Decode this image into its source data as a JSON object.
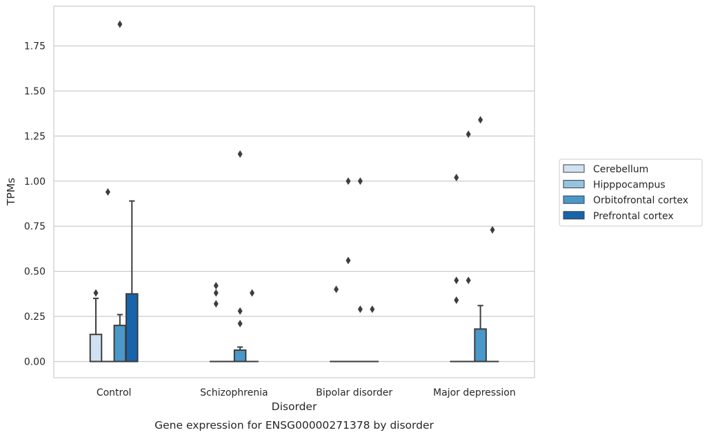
{
  "chart_data": {
    "type": "box",
    "title": "",
    "caption": "Gene expression for ENSG00000271378 by disorder",
    "xlabel": "Disorder",
    "ylabel": "TPMs",
    "ylim": [
      -0.09,
      1.97
    ],
    "yticks": [
      0.0,
      0.25,
      0.5,
      0.75,
      1.0,
      1.25,
      1.5,
      1.75
    ],
    "ytick_labels": [
      "0.00",
      "0.25",
      "0.50",
      "0.75",
      "1.00",
      "1.25",
      "1.50",
      "1.75"
    ],
    "grid": "horizontal",
    "legend_position": "right",
    "categories": [
      "Control",
      "Schizophrenia",
      "Bipolar disorder",
      "Major depression"
    ],
    "series": [
      {
        "name": "Cerebellum",
        "color": "#d0e1f2",
        "boxes": [
          {
            "q1": 0.0,
            "median": 0.0,
            "q3": 0.15,
            "whisker_low": 0.0,
            "whisker_high": 0.35,
            "outliers": [
              0.38
            ]
          },
          {
            "q1": 0.0,
            "median": 0.0,
            "q3": 0.0,
            "whisker_low": 0.0,
            "whisker_high": 0.0,
            "outliers": [
              0.42,
              0.38,
              0.32
            ]
          },
          {
            "q1": 0.0,
            "median": 0.0,
            "q3": 0.0,
            "whisker_low": 0.0,
            "whisker_high": 0.0,
            "outliers": [
              0.4
            ]
          },
          {
            "q1": 0.0,
            "median": 0.0,
            "q3": 0.0,
            "whisker_low": 0.0,
            "whisker_high": 0.0,
            "outliers": [
              1.02,
              0.45,
              0.34
            ]
          }
        ]
      },
      {
        "name": "Hipppocampus",
        "color": "#94c4df",
        "boxes": [
          {
            "q1": 0.0,
            "median": 0.0,
            "q3": 0.0,
            "whisker_low": 0.0,
            "whisker_high": 0.0,
            "outliers": [
              0.94
            ]
          },
          {
            "q1": 0.0,
            "median": 0.0,
            "q3": 0.0,
            "whisker_low": 0.0,
            "whisker_high": 0.0,
            "outliers": []
          },
          {
            "q1": 0.0,
            "median": 0.0,
            "q3": 0.0,
            "whisker_low": 0.0,
            "whisker_high": 0.0,
            "outliers": [
              1.0,
              0.56
            ]
          },
          {
            "q1": 0.0,
            "median": 0.0,
            "q3": 0.0,
            "whisker_low": 0.0,
            "whisker_high": 0.0,
            "outliers": [
              1.26,
              0.45
            ]
          }
        ]
      },
      {
        "name": "Orbitofrontal cortex",
        "color": "#4a98c9",
        "boxes": [
          {
            "q1": 0.0,
            "median": 0.0,
            "q3": 0.2,
            "whisker_low": 0.0,
            "whisker_high": 0.26,
            "outliers": [
              1.87
            ]
          },
          {
            "q1": 0.0,
            "median": 0.0,
            "q3": 0.063,
            "whisker_low": 0.0,
            "whisker_high": 0.08,
            "outliers": [
              1.15,
              0.28,
              0.21
            ]
          },
          {
            "q1": 0.0,
            "median": 0.0,
            "q3": 0.0,
            "whisker_low": 0.0,
            "whisker_high": 0.0,
            "outliers": [
              1.0,
              0.29
            ]
          },
          {
            "q1": 0.0,
            "median": 0.0,
            "q3": 0.18,
            "whisker_low": 0.0,
            "whisker_high": 0.31,
            "outliers": [
              1.34
            ]
          }
        ]
      },
      {
        "name": "Prefrontal cortex",
        "color": "#1764ab",
        "boxes": [
          {
            "q1": 0.0,
            "median": 0.0,
            "q3": 0.375,
            "whisker_low": 0.0,
            "whisker_high": 0.89,
            "outliers": []
          },
          {
            "q1": 0.0,
            "median": 0.0,
            "q3": 0.0,
            "whisker_low": 0.0,
            "whisker_high": 0.0,
            "outliers": [
              0.38
            ]
          },
          {
            "q1": 0.0,
            "median": 0.0,
            "q3": 0.0,
            "whisker_low": 0.0,
            "whisker_high": 0.0,
            "outliers": [
              0.29
            ]
          },
          {
            "q1": 0.0,
            "median": 0.0,
            "q3": 0.0,
            "whisker_low": 0.0,
            "whisker_high": 0.0,
            "outliers": [
              0.73
            ]
          }
        ]
      }
    ]
  }
}
